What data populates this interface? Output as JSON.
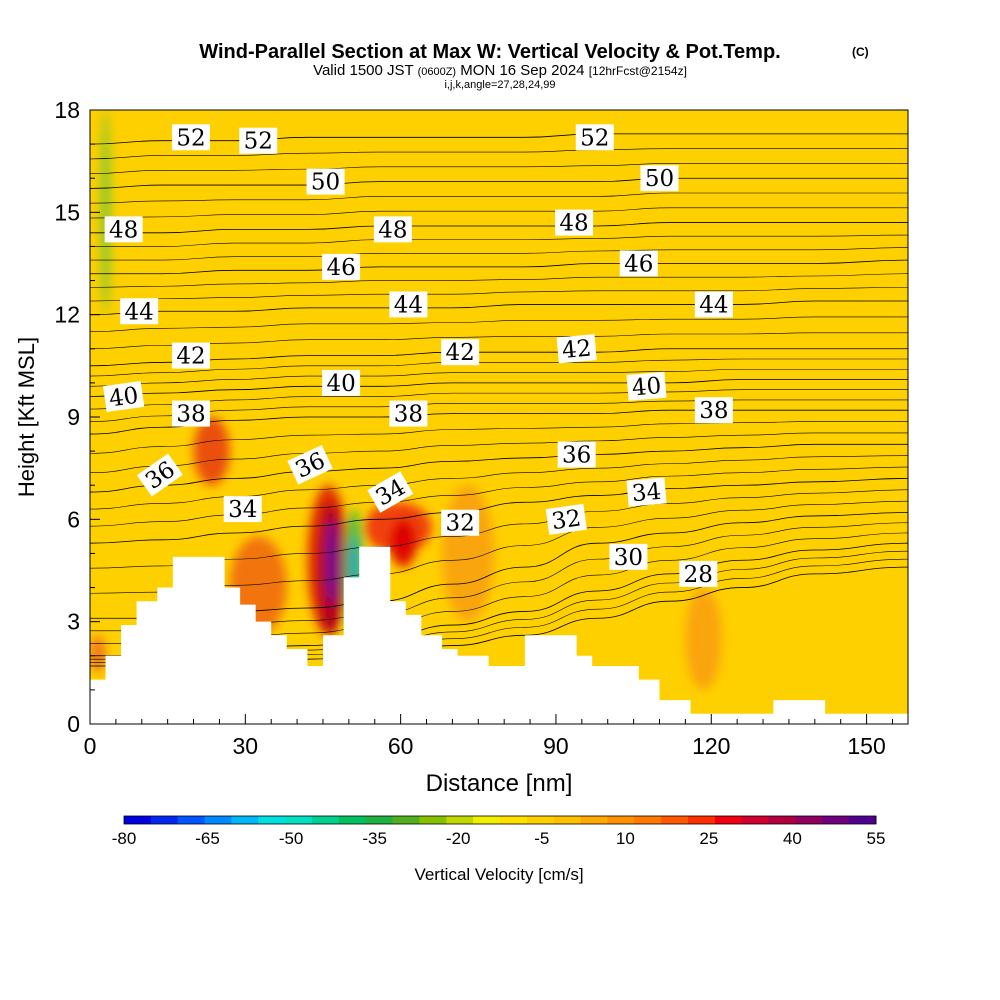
{
  "header": {
    "title": "Wind-Parallel Section at Max W: Vertical Velocity & Pot.Temp.",
    "copyright": "(C)",
    "valid_prefix": "Valid 1500 JST",
    "valid_utc": "(0600Z)",
    "valid_date": "MON 16 Sep 2024",
    "forecast": "[12hrFcst@2154z]",
    "indices": "i,j,k,angle=27,28,24,99"
  },
  "chart_data": {
    "type": "heatmap",
    "xlabel": "Distance [nm]",
    "ylabel": "Height [Kft MSL]",
    "xlim": [
      0,
      158
    ],
    "ylim": [
      0,
      18
    ],
    "x_ticks": [
      0,
      30,
      60,
      90,
      120,
      150
    ],
    "y_ticks": [
      0,
      3,
      6,
      9,
      12,
      15,
      18
    ],
    "background_color": "#ffd000",
    "terrain": [
      [
        0,
        1.3
      ],
      [
        3,
        1.3
      ],
      [
        3,
        2.0
      ],
      [
        6,
        2.0
      ],
      [
        6,
        2.9
      ],
      [
        9,
        2.9
      ],
      [
        9,
        3.6
      ],
      [
        13,
        3.6
      ],
      [
        13,
        4.0
      ],
      [
        16,
        4.0
      ],
      [
        16,
        4.9
      ],
      [
        26,
        4.9
      ],
      [
        26,
        4.0
      ],
      [
        29,
        4.0
      ],
      [
        29,
        3.5
      ],
      [
        32,
        3.5
      ],
      [
        32,
        3.0
      ],
      [
        35,
        3.0
      ],
      [
        35,
        2.6
      ],
      [
        38,
        2.6
      ],
      [
        38,
        2.2
      ],
      [
        42,
        2.2
      ],
      [
        42,
        1.7
      ],
      [
        45,
        1.7
      ],
      [
        45,
        2.6
      ],
      [
        49,
        2.6
      ],
      [
        49,
        4.3
      ],
      [
        52,
        4.3
      ],
      [
        52,
        5.2
      ],
      [
        58,
        5.2
      ],
      [
        58,
        3.6
      ],
      [
        61,
        3.6
      ],
      [
        61,
        3.2
      ],
      [
        64,
        3.2
      ],
      [
        64,
        2.6
      ],
      [
        68,
        2.6
      ],
      [
        68,
        2.2
      ],
      [
        71,
        2.2
      ],
      [
        71,
        2.0
      ],
      [
        77,
        2.0
      ],
      [
        77,
        1.7
      ],
      [
        84,
        1.7
      ],
      [
        84,
        2.6
      ],
      [
        94,
        2.6
      ],
      [
        94,
        2.0
      ],
      [
        97,
        2.0
      ],
      [
        97,
        1.7
      ],
      [
        106,
        1.7
      ],
      [
        106,
        1.3
      ],
      [
        110,
        1.3
      ],
      [
        110,
        0.7
      ],
      [
        116,
        0.7
      ],
      [
        116,
        0.3
      ],
      [
        132,
        0.3
      ],
      [
        132,
        0.7
      ],
      [
        142,
        0.7
      ],
      [
        142,
        0.3
      ],
      [
        158,
        0.3
      ]
    ],
    "shading": [
      {
        "x": [
          42,
          50
        ],
        "y": [
          2.6,
          7.0
        ],
        "color": "#dd2000"
      },
      {
        "x": [
          44,
          49
        ],
        "y": [
          2.6,
          6.5
        ],
        "color": "#b00020"
      },
      {
        "x": [
          45.5,
          48
        ],
        "y": [
          3.5,
          6.0
        ],
        "color": "#70109a"
      },
      {
        "x": [
          49,
          53
        ],
        "y": [
          2.6,
          6.3
        ],
        "color": "#40c040"
      },
      {
        "x": [
          50,
          52
        ],
        "y": [
          3.5,
          5.5
        ],
        "color": "#1da8c8"
      },
      {
        "x": [
          53,
          66
        ],
        "y": [
          5.0,
          6.5
        ],
        "color": "#ee3010"
      },
      {
        "x": [
          58,
          63
        ],
        "y": [
          4.6,
          6.0
        ],
        "color": "#dd0000"
      },
      {
        "x": [
          20,
          27
        ],
        "y": [
          7.0,
          9.0
        ],
        "color": "#e84010"
      },
      {
        "x": [
          27,
          38
        ],
        "y": [
          2.6,
          5.5
        ],
        "color": "#f06a10"
      },
      {
        "x": [
          2,
          4
        ],
        "y": [
          12.0,
          18.0
        ],
        "color": "#80c830"
      },
      {
        "x": [
          0,
          3
        ],
        "y": [
          1.5,
          2.6
        ],
        "color": "#f07020"
      },
      {
        "x": [
          68,
          78
        ],
        "y": [
          3.0,
          7.0
        ],
        "color": "#f8a010"
      },
      {
        "x": [
          115,
          122
        ],
        "y": [
          1.0,
          4.0
        ],
        "color": "#f8a010"
      }
    ],
    "contours": [
      {
        "level": 28,
        "label": "28",
        "y": [
          1.7,
          1.7,
          1.8,
          1.9,
          2.0,
          2.3,
          2.6,
          3.1,
          3.6,
          4.0,
          4.4,
          4.6
        ]
      },
      {
        "level": 30,
        "label": "30",
        "y": [
          2.0,
          2.0,
          2.2,
          2.3,
          2.5,
          2.9,
          3.3,
          3.9,
          4.4,
          4.8,
          5.1,
          5.3
        ]
      },
      {
        "level": 32,
        "label": "32",
        "y": [
          3.1,
          3.1,
          3.3,
          3.4,
          3.6,
          4.1,
          4.6,
          5.3,
          5.6,
          5.9,
          6.1,
          6.2
        ]
      },
      {
        "level": 34,
        "label": "34",
        "y": [
          5.3,
          5.4,
          5.6,
          5.8,
          6.0,
          6.2,
          6.5,
          6.7,
          6.9,
          7.0,
          7.1,
          7.2
        ]
      },
      {
        "level": 36,
        "label": "36",
        "y": [
          6.8,
          7.0,
          7.2,
          7.4,
          7.5,
          7.7,
          7.8,
          7.9,
          8.0,
          8.1,
          8.2,
          8.2
        ]
      },
      {
        "level": 38,
        "label": "38",
        "y": [
          8.5,
          8.7,
          8.9,
          9.0,
          9.0,
          9.1,
          9.1,
          9.1,
          9.2,
          9.2,
          9.2,
          9.2
        ]
      },
      {
        "level": 40,
        "label": "40",
        "y": [
          9.6,
          9.7,
          9.8,
          9.9,
          9.9,
          10.0,
          10.0,
          10.0,
          10.0,
          10.1,
          10.1,
          10.1
        ]
      },
      {
        "level": 42,
        "label": "42",
        "y": [
          10.5,
          10.6,
          10.7,
          10.8,
          10.8,
          10.9,
          10.9,
          10.9,
          11.0,
          11.0,
          11.0,
          11.0
        ]
      },
      {
        "level": 44,
        "label": "44",
        "y": [
          12.0,
          12.1,
          12.1,
          12.2,
          12.2,
          12.2,
          12.3,
          12.3,
          12.3,
          12.3,
          12.4,
          12.4
        ]
      },
      {
        "level": 46,
        "label": "46",
        "y": [
          13.2,
          13.2,
          13.3,
          13.3,
          13.4,
          13.4,
          13.4,
          13.5,
          13.5,
          13.5,
          13.5,
          13.6
        ]
      },
      {
        "level": 48,
        "label": "48",
        "y": [
          14.4,
          14.4,
          14.5,
          14.5,
          14.6,
          14.6,
          14.6,
          14.6,
          14.7,
          14.7,
          14.7,
          14.7
        ]
      },
      {
        "level": 50,
        "label": "50",
        "y": [
          15.7,
          15.8,
          15.8,
          15.8,
          15.9,
          15.9,
          15.9,
          15.9,
          16.0,
          16.0,
          16.0,
          16.0
        ]
      },
      {
        "level": 52,
        "label": "52",
        "y": [
          17.0,
          17.1,
          17.1,
          17.2,
          17.2,
          17.2,
          17.2,
          17.3,
          17.3,
          17.3,
          17.3,
          17.3
        ]
      }
    ],
    "contour_x": [
      0,
      14,
      28,
      42,
      56,
      70,
      84,
      98,
      112,
      126,
      140,
      158
    ],
    "contour_labels": [
      {
        "text": "52",
        "x": 19.5,
        "y": 17.2,
        "rot": 0
      },
      {
        "text": "52",
        "x": 32.5,
        "y": 17.1,
        "rot": 0
      },
      {
        "text": "52",
        "x": 97.5,
        "y": 17.2,
        "rot": 0
      },
      {
        "text": "50",
        "x": 45.5,
        "y": 15.9,
        "rot": 0
      },
      {
        "text": "50",
        "x": 110,
        "y": 16.0,
        "rot": 0
      },
      {
        "text": "48",
        "x": 6.5,
        "y": 14.5,
        "rot": 0
      },
      {
        "text": "48",
        "x": 58.5,
        "y": 14.5,
        "rot": 0
      },
      {
        "text": "48",
        "x": 93.5,
        "y": 14.7,
        "rot": 0
      },
      {
        "text": "46",
        "x": 48.5,
        "y": 13.4,
        "rot": 0
      },
      {
        "text": "46",
        "x": 106,
        "y": 13.5,
        "rot": 0
      },
      {
        "text": "44",
        "x": 9.5,
        "y": 12.1,
        "rot": 0
      },
      {
        "text": "44",
        "x": 61.5,
        "y": 12.3,
        "rot": 0
      },
      {
        "text": "44",
        "x": 120.5,
        "y": 12.3,
        "rot": 0
      },
      {
        "text": "42",
        "x": 19.5,
        "y": 10.8,
        "rot": 0
      },
      {
        "text": "42",
        "x": 71.5,
        "y": 10.9,
        "rot": 0
      },
      {
        "text": "42",
        "x": 94,
        "y": 11.0,
        "rot": -5
      },
      {
        "text": "40",
        "x": 6.5,
        "y": 9.6,
        "rot": -8
      },
      {
        "text": "40",
        "x": 48.5,
        "y": 10.0,
        "rot": 0
      },
      {
        "text": "40",
        "x": 107.5,
        "y": 9.9,
        "rot": -5
      },
      {
        "text": "38",
        "x": 19.5,
        "y": 9.1,
        "rot": 0
      },
      {
        "text": "38",
        "x": 61.5,
        "y": 9.1,
        "rot": 0
      },
      {
        "text": "38",
        "x": 120.5,
        "y": 9.2,
        "rot": 0
      },
      {
        "text": "36",
        "x": 13.5,
        "y": 7.3,
        "rot": -35
      },
      {
        "text": "36",
        "x": 42.5,
        "y": 7.6,
        "rot": -25
      },
      {
        "text": "36",
        "x": 94,
        "y": 7.9,
        "rot": 0
      },
      {
        "text": "34",
        "x": 29.5,
        "y": 6.3,
        "rot": 0
      },
      {
        "text": "34",
        "x": 58,
        "y": 6.8,
        "rot": -30
      },
      {
        "text": "34",
        "x": 107.5,
        "y": 6.8,
        "rot": -5
      },
      {
        "text": "32",
        "x": 71.5,
        "y": 5.9,
        "rot": 0
      },
      {
        "text": "32",
        "x": 92,
        "y": 6.0,
        "rot": -8
      },
      {
        "text": "30",
        "x": 104,
        "y": 4.9,
        "rot": 0
      },
      {
        "text": "28",
        "x": 117.5,
        "y": 4.4,
        "rot": 0
      }
    ]
  },
  "colorbar": {
    "label": "Vertical Velocity [cm/s]",
    "tick_labels": [
      "-80",
      "-65",
      "-50",
      "-35",
      "-20",
      "-5",
      "10",
      "25",
      "40",
      "55"
    ],
    "colors": [
      "#0000e0",
      "#0028f0",
      "#0055ff",
      "#0088ff",
      "#00b8f8",
      "#00e0e0",
      "#00e0c0",
      "#00d090",
      "#00c060",
      "#20b040",
      "#50b020",
      "#88c000",
      "#c0d800",
      "#f0f000",
      "#ffe000",
      "#ffd000",
      "#ffc000",
      "#ffa800",
      "#ff9000",
      "#ff7800",
      "#ff5800",
      "#ff3000",
      "#f00010",
      "#d00030",
      "#b00040",
      "#900060",
      "#700080",
      "#500090"
    ]
  }
}
